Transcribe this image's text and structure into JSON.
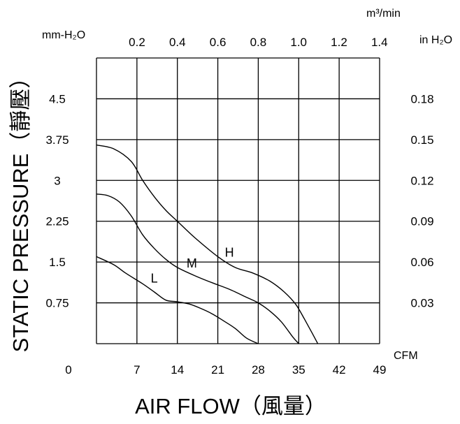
{
  "chart_data": {
    "type": "line",
    "xlabel": "AIR FLOW",
    "xlabel_cjk": "風量",
    "ylabel": "STATIC PRESSURE",
    "ylabel_cjk": "靜壓",
    "x_unit": "CFM",
    "x_unit_top": "m³/min",
    "y_unit_left": "mm-H₂O",
    "y_unit_right": "in H₂O",
    "xlim": [
      0,
      49
    ],
    "ylim": [
      0,
      5.25
    ],
    "x_ticks": [
      "0",
      "7",
      "14",
      "21",
      "28",
      "35",
      "42",
      "49"
    ],
    "x_ticks_top": [
      "0.2",
      "0.4",
      "0.6",
      "0.8",
      "1.0",
      "1.2",
      "1.4"
    ],
    "y_ticks_left": [
      "0.75",
      "1.5",
      "2.25",
      "3",
      "3.75",
      "4.5"
    ],
    "y_ticks_right": [
      "0.03",
      "0.06",
      "0.09",
      "0.12",
      "0.15",
      "0.18"
    ],
    "grid": true,
    "series": [
      {
        "name": "H",
        "x": [
          0,
          3,
          6,
          8,
          10,
          12,
          14,
          17,
          21,
          24,
          27,
          30,
          32.5,
          34.5,
          36,
          37.3,
          38.3
        ],
        "y": [
          3.65,
          3.58,
          3.35,
          3.0,
          2.7,
          2.45,
          2.25,
          1.95,
          1.6,
          1.4,
          1.3,
          1.15,
          0.95,
          0.72,
          0.45,
          0.2,
          0
        ]
      },
      {
        "name": "M",
        "x": [
          0,
          2,
          4,
          6,
          8,
          10,
          12,
          14,
          17,
          20,
          23,
          26,
          28,
          30,
          32,
          34,
          35
        ],
        "y": [
          2.75,
          2.72,
          2.6,
          2.35,
          2.0,
          1.75,
          1.55,
          1.4,
          1.25,
          1.12,
          1.0,
          0.85,
          0.75,
          0.6,
          0.4,
          0.12,
          0
        ]
      },
      {
        "name": "L",
        "x": [
          0,
          3,
          5,
          8,
          10,
          12,
          14,
          16,
          18,
          20,
          22,
          24,
          26,
          28
        ],
        "y": [
          1.6,
          1.45,
          1.3,
          1.1,
          0.95,
          0.8,
          0.77,
          0.73,
          0.65,
          0.55,
          0.42,
          0.28,
          0.1,
          0
        ]
      }
    ]
  }
}
